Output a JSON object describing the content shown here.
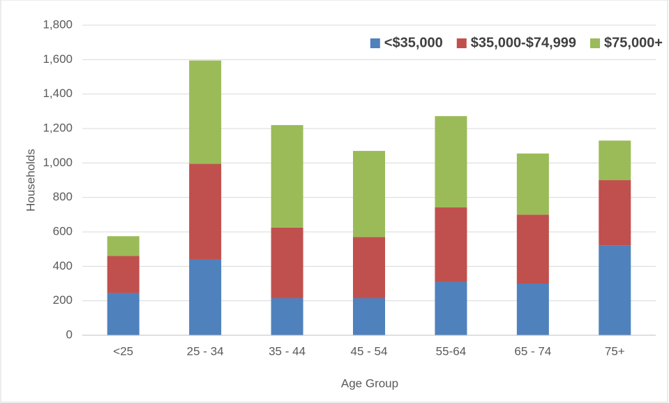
{
  "chart_data": {
    "type": "stacked_bar",
    "x_label": "Age Group",
    "y_label": "Households",
    "categories": [
      "<25",
      "25 - 34",
      "35 - 44",
      "45 - 54",
      "55-64",
      "65 - 74",
      "75+"
    ],
    "series": [
      {
        "name": "<$35,000",
        "color": "#4f81bd",
        "values": [
          245,
          440,
          215,
          215,
          310,
          300,
          520
        ]
      },
      {
        "name": "$35,000-$74,999",
        "color": "#c0504d",
        "values": [
          215,
          555,
          410,
          355,
          432,
          400,
          380
        ]
      },
      {
        "name": "$75,000+",
        "color": "#9bbb59",
        "values": [
          115,
          600,
          595,
          500,
          530,
          355,
          230
        ]
      }
    ],
    "ylim": [
      0,
      1800
    ],
    "yticks": [
      0,
      200,
      400,
      600,
      800,
      {
        "value": 1000,
        "label": "1,000"
      },
      {
        "value": 1200,
        "label": "1,200"
      },
      {
        "value": 1400,
        "label": "1,400"
      },
      {
        "value": 1600,
        "label": "1,600"
      },
      {
        "value": 1800,
        "label": "1,800"
      }
    ],
    "grid": true,
    "legend": "top-right"
  }
}
